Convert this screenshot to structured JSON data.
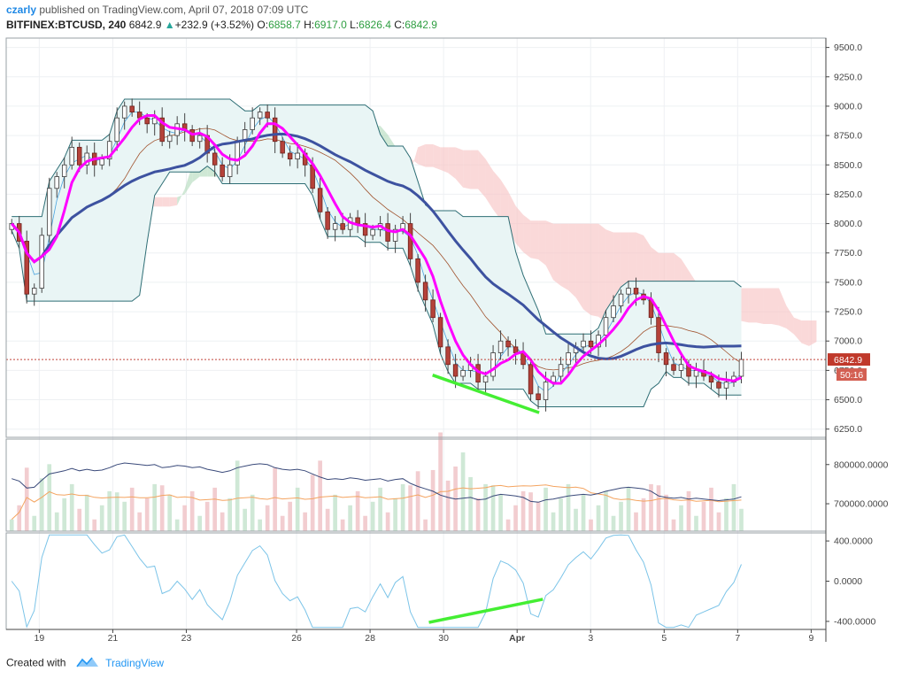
{
  "header": {
    "author": "czarly",
    "published": "published on TradingView.com, April 07, 2018 07:09 UTC",
    "symbol": "BITFINEX:BTCUSD, 240",
    "last": "6842.9",
    "change_arrow": "▲",
    "change": "+232.9 (+3.52%)",
    "o_label": "O:",
    "o_value": "6858.7",
    "h_label": "H:",
    "h_value": "6917.0",
    "l_label": "L:",
    "l_value": "6826.4",
    "c_label": "C:",
    "c_value": "6842.9"
  },
  "footer": {
    "created_with": "Created with",
    "brand": "TradingView"
  },
  "price_tag": {
    "price": "6842.9",
    "countdown": "50:16"
  },
  "colors": {
    "bull_candle": "#ffffff",
    "bear_candle": "#b5423a",
    "wick": "#444444",
    "ma_fast": "#ff00ff",
    "ma_slow": "#3d52a0",
    "trendline": "#44ee33",
    "cloud_bear": "#f8c4c4",
    "cloud_bull": "#b6dcbf",
    "bb_fill": "#e9f5f5",
    "bb_line": "#2e6e75",
    "vol_up": "#cfe8d6",
    "vol_down": "#f2cdd0",
    "vol_line": "#3a4a7a",
    "vol_ma": "#f4a460",
    "osc": "#7cc4e8",
    "last_line": "#c1443a"
  },
  "chart_data": [
    {
      "type": "candlestick",
      "pane": "price",
      "y_axis_ticks": [
        "9500.0",
        "9250.0",
        "9000.0",
        "8750.0",
        "8500.0",
        "8250.0",
        "8000.0",
        "7750.0",
        "7500.0",
        "7250.0",
        "7000.0",
        "6750.0",
        "6500.0",
        "6250.0"
      ],
      "ylim": [
        6180,
        9580
      ],
      "x_ticks": [
        {
          "label": "19",
          "day": 19
        },
        {
          "label": "21",
          "day": 21
        },
        {
          "label": "23",
          "day": 23
        },
        {
          "label": "26",
          "day": 26
        },
        {
          "label": "28",
          "day": 28
        },
        {
          "label": "30",
          "day": 30
        },
        {
          "label": "Apr",
          "day": 32
        },
        {
          "label": "3",
          "day": 34
        },
        {
          "label": "5",
          "day": 36
        },
        {
          "label": "7",
          "day": 38
        },
        {
          "label": "9",
          "day": 40
        }
      ],
      "x_units": "days since March 0, 2018",
      "xlim": [
        18.1,
        40.4
      ],
      "candles_close": [
        8000,
        7850,
        7400,
        7450,
        7900,
        8300,
        8400,
        8500,
        8650,
        8500,
        8600,
        8500,
        8550,
        8700,
        8900,
        9000,
        8950,
        8900,
        8850,
        8900,
        8700,
        8750,
        8850,
        8800,
        8700,
        8750,
        8600,
        8500,
        8400,
        8500,
        8700,
        8800,
        8900,
        8950,
        8900,
        8700,
        8600,
        8550,
        8600,
        8500,
        8300,
        8100,
        7950,
        8000,
        7950,
        8050,
        8000,
        7900,
        7950,
        8000,
        7850,
        7950,
        8000,
        7700,
        7500,
        7350,
        7200,
        6950,
        6800,
        6700,
        6750,
        6800,
        6650,
        6700,
        6900,
        7000,
        6950,
        6900,
        6800,
        6550,
        6500,
        6650,
        6700,
        6800,
        6900,
        6950,
        7000,
        6950,
        7050,
        7200,
        7300,
        7400,
        7450,
        7400,
        7350,
        7200,
        6900,
        6800,
        6750,
        6800,
        6700,
        6750,
        6700,
        6650,
        6600,
        6650,
        6700,
        6842.9
      ],
      "last_price": 6842.9
    },
    {
      "type": "bar",
      "pane": "volume",
      "y_axis_ticks": [
        "800000.0000",
        "700000.0000"
      ],
      "ylim": [
        630000,
        865000
      ]
    },
    {
      "type": "line",
      "pane": "oscillator",
      "y_axis_ticks": [
        "400.0000",
        "0.0000",
        "-400.0000"
      ],
      "ylim": [
        -480,
        480
      ]
    }
  ]
}
